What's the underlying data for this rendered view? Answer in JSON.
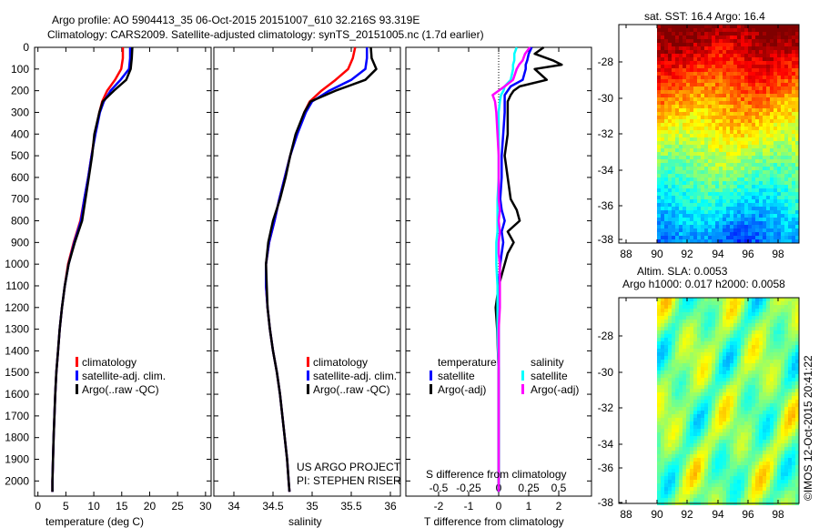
{
  "title_line1": "Argo profile: AO 5904413_35 06-Oct-2015 20151007_610 32.216S 93.319E",
  "title_line2": "Climatology: CARS2009. Satellite-adjusted climatology: synTS_20151005.nc (1.7d earlier)",
  "colors": {
    "climatology": "#ff0000",
    "satellite": "#0000ff",
    "argo": "#000000",
    "sal_satellite": "#00ffff",
    "sal_argo": "#ff00ff"
  },
  "chart_data": [
    {
      "type": "line",
      "name": "temperature-profile",
      "xlabel": "temperature (deg C)",
      "ylabel": "depth",
      "xlim": [
        -0.6,
        31
      ],
      "ylim": [
        0,
        2070
      ],
      "xticks": [
        0,
        5,
        10,
        15,
        20,
        25,
        30
      ],
      "yticks": [
        0,
        100,
        200,
        300,
        400,
        500,
        600,
        700,
        800,
        900,
        1000,
        1100,
        1200,
        1300,
        1400,
        1500,
        1600,
        1700,
        1800,
        1900,
        2000
      ],
      "legend": [
        "climatology",
        "satellite-adj. clim.",
        "Argo(..raw -QC)"
      ],
      "depth": [
        0,
        50,
        100,
        150,
        200,
        250,
        300,
        400,
        500,
        600,
        700,
        800,
        900,
        1000,
        1100,
        1200,
        1300,
        1400,
        1500,
        1600,
        1800,
        2000,
        2050
      ],
      "series": [
        {
          "name": "climatology",
          "color": "#ff0000",
          "values": [
            15.2,
            15.2,
            14.9,
            13.8,
            12.4,
            11.5,
            11.0,
            10.2,
            9.6,
            9.0,
            8.3,
            7.6,
            6.4,
            5.4,
            4.8,
            4.3,
            3.9,
            3.6,
            3.3,
            3.1,
            2.8,
            2.6,
            2.6
          ]
        },
        {
          "name": "satellite-adj. clim.",
          "color": "#0000ff",
          "values": [
            16.5,
            16.5,
            16.3,
            14.8,
            13.0,
            11.8,
            11.1,
            10.3,
            9.6,
            9.0,
            8.3,
            7.7,
            6.5,
            5.5,
            4.8,
            4.3,
            3.9,
            3.6,
            3.3,
            3.1,
            2.8,
            2.6,
            2.6
          ]
        },
        {
          "name": "Argo(..raw -QC)",
          "color": "#000000",
          "values": [
            16.9,
            16.8,
            16.6,
            15.8,
            13.6,
            11.6,
            11.0,
            10.1,
            9.7,
            9.1,
            8.5,
            7.9,
            6.6,
            5.5,
            4.8,
            4.3,
            3.9,
            3.6,
            3.3,
            3.1,
            2.8,
            2.6,
            2.6
          ]
        }
      ]
    },
    {
      "type": "line",
      "name": "salinity-profile",
      "xlabel": "salinity",
      "xlim": [
        33.744,
        36.128
      ],
      "ylim": [
        0,
        2070
      ],
      "xticks": [
        34,
        34.5,
        35,
        35.5,
        36
      ],
      "xticklabels": [
        "34",
        "34.5",
        "35",
        "35.5",
        "36"
      ],
      "legend": [
        "climatology",
        "satellite-adj. clim.",
        "Argo(..raw -QC)"
      ],
      "depth": [
        0,
        50,
        100,
        150,
        200,
        250,
        300,
        400,
        500,
        600,
        700,
        800,
        900,
        1000,
        1100,
        1200,
        1300,
        1400,
        1500,
        1600,
        1700,
        1800,
        1900,
        2000,
        2050
      ],
      "series": [
        {
          "name": "climatology",
          "color": "#ff0000",
          "values": [
            35.55,
            35.52,
            35.46,
            35.3,
            35.12,
            34.97,
            34.9,
            34.8,
            34.72,
            34.65,
            34.58,
            34.52,
            34.45,
            34.41,
            34.41,
            34.43,
            34.46,
            34.5,
            34.55,
            34.59,
            34.62,
            34.65,
            34.68,
            34.7,
            34.71
          ]
        },
        {
          "name": "satellite-adj. clim.",
          "color": "#0000ff",
          "values": [
            35.7,
            35.7,
            35.68,
            35.5,
            35.22,
            35.0,
            34.92,
            34.81,
            34.72,
            34.65,
            34.58,
            34.52,
            34.45,
            34.41,
            34.41,
            34.43,
            34.46,
            34.5,
            34.55,
            34.59,
            34.62,
            34.65,
            34.68,
            34.7,
            34.71
          ]
        },
        {
          "name": "Argo(..raw -QC)",
          "color": "#000000",
          "values": [
            35.75,
            35.76,
            35.82,
            35.68,
            35.3,
            34.98,
            34.9,
            34.79,
            34.72,
            34.66,
            34.59,
            34.5,
            34.44,
            34.41,
            34.42,
            34.43,
            34.46,
            34.5,
            34.55,
            34.59,
            34.62,
            34.65,
            34.68,
            34.7,
            34.71
          ]
        }
      ],
      "credit": [
        "US ARGO PROJECT",
        "PI: STEPHEN RISER"
      ]
    },
    {
      "type": "line",
      "name": "difference-profile",
      "xlabel": "T difference from climatology",
      "xlabel2": "S difference from climatology",
      "xlim": [
        -3.09,
        3.09
      ],
      "ylim": [
        0,
        2070
      ],
      "xticks": [
        -2,
        -1,
        0,
        1,
        2
      ],
      "xticks_s": [
        -0.5,
        -0.25,
        0,
        0.25,
        0.5
      ],
      "xticklabels_s": [
        "-0.5",
        "-0.25",
        "0",
        "0.25",
        "0.5"
      ],
      "legend_headers": [
        "temperature",
        "salinity"
      ],
      "legend": [
        "satellite",
        "Argo(-adj)",
        "satellite",
        "Argo(-adj)"
      ],
      "depth": [
        0,
        30,
        60,
        80,
        100,
        150,
        180,
        200,
        220,
        250,
        300,
        400,
        500,
        600,
        700,
        750,
        800,
        850,
        900,
        950,
        1000,
        1100,
        1200,
        1300,
        1500,
        1800,
        2050
      ],
      "series": [
        {
          "name": "T satellite",
          "color": "#0000ff",
          "unit": "T",
          "values": [
            1.1,
            1.0,
            0.95,
            0.9,
            0.9,
            0.8,
            0.4,
            0.3,
            0.2,
            0.2,
            0.2,
            0.15,
            0.1,
            0.1,
            0.05,
            0.1,
            0.2,
            0.1,
            0.15,
            0.1,
            0.05,
            0.0,
            0.0,
            0.0,
            0.0,
            0.0,
            0.0
          ]
        },
        {
          "name": "T Argo(-adj)",
          "color": "#000000",
          "unit": "T",
          "values": [
            1.5,
            1.2,
            1.8,
            2.1,
            1.2,
            1.6,
            0.7,
            0.5,
            0.4,
            0.3,
            0.3,
            0.3,
            0.2,
            0.3,
            0.4,
            0.6,
            0.7,
            0.3,
            0.5,
            0.3,
            0.2,
            0.0,
            -0.1,
            -0.05,
            0.0,
            0.0,
            0.0
          ]
        },
        {
          "name": "S satellite",
          "color": "#00ffff",
          "unit": "S",
          "values": [
            0.15,
            0.13,
            0.13,
            0.12,
            0.12,
            0.1,
            0.05,
            0.04,
            0.02,
            0.01,
            0.0,
            0.0,
            0.0,
            0.0,
            -0.01,
            -0.01,
            -0.01,
            -0.01,
            -0.02,
            -0.02,
            -0.02,
            -0.01,
            -0.01,
            -0.01,
            0.0,
            0.0,
            0.0
          ]
        },
        {
          "name": "S Argo(-adj)",
          "color": "#ff00ff",
          "unit": "S",
          "values": [
            0.26,
            0.22,
            0.2,
            0.17,
            0.15,
            0.12,
            0.05,
            0.0,
            -0.05,
            -0.03,
            -0.02,
            -0.01,
            0.0,
            0.0,
            0.0,
            0.01,
            0.0,
            0.01,
            0.0,
            0.0,
            0.01,
            0.01,
            0.01,
            0.0,
            0.0,
            0.0,
            0.0
          ]
        }
      ]
    },
    {
      "type": "heatmap",
      "name": "sst-map",
      "title": "sat. SST: 16.4 Argo: 16.4",
      "xticks": [
        88,
        90,
        92,
        94,
        96,
        98
      ],
      "yticks": [
        -28,
        -30,
        -32,
        -34,
        -36,
        -38
      ],
      "lon_range": [
        90,
        99.3
      ],
      "lat_range": [
        -27,
        -38.3
      ],
      "value_range": [
        13.5,
        19.5
      ],
      "colormap": "jet"
    },
    {
      "type": "heatmap",
      "name": "sla-map",
      "title": "Altim. SLA: 0.0053",
      "title2": "Argo h1000: 0.017 h2000: 0.0058",
      "xticks": [
        88,
        90,
        92,
        94,
        96,
        98
      ],
      "yticks": [
        -28,
        -30,
        -32,
        -34,
        -36,
        -38
      ],
      "lon_range": [
        90,
        99.3
      ],
      "lat_range": [
        -27,
        -38.3
      ],
      "colormap": "jet"
    }
  ],
  "footer_stamp": "©IMOS 12-Oct-2015 20:41:22"
}
